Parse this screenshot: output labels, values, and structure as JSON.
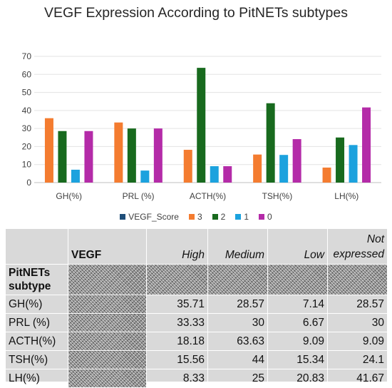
{
  "chart_data": {
    "type": "bar",
    "title": "VEGF Expression According to PitNETs subtypes",
    "categories": [
      "GH(%)",
      "PRL (%)",
      "ACTH(%)",
      "TSH(%)",
      "LH(%)"
    ],
    "ylim": [
      0,
      70
    ],
    "yticks": [
      0,
      10,
      20,
      30,
      40,
      50,
      60,
      70
    ],
    "grid": true,
    "legend_position": "bottom",
    "legend": [
      {
        "name": "VEGF_Score",
        "color": "#1f4e79"
      },
      {
        "name": "3",
        "color": "#f47c30"
      },
      {
        "name": "2",
        "color": "#186a1e"
      },
      {
        "name": "1",
        "color": "#1ca2de"
      },
      {
        "name": "0",
        "color": "#b42ba8"
      }
    ],
    "series": [
      {
        "name": "3",
        "color": "#f47c30",
        "values": [
          35.71,
          33.33,
          18.18,
          15.56,
          8.33
        ]
      },
      {
        "name": "2",
        "color": "#186a1e",
        "values": [
          28.57,
          30,
          63.63,
          44,
          25
        ]
      },
      {
        "name": "1",
        "color": "#1ca2de",
        "values": [
          7.14,
          6.67,
          9.09,
          15.34,
          20.83
        ]
      },
      {
        "name": "0",
        "color": "#b42ba8",
        "values": [
          28.57,
          30,
          9.09,
          24.1,
          41.67
        ]
      }
    ]
  },
  "table": {
    "header": [
      "",
      "VEGF",
      "High",
      "Medium",
      "Low",
      "Not expressed"
    ],
    "subtype_label": "PitNETs subtype",
    "rows": [
      {
        "label": "GH(%)",
        "values": [
          "35.71",
          "28.57",
          "7.14",
          "28.57"
        ]
      },
      {
        "label": "PRL (%)",
        "values": [
          "33.33",
          "30",
          "6.67",
          "30"
        ]
      },
      {
        "label": "ACTH(%)",
        "values": [
          "18.18",
          "63.63",
          "9.09",
          "9.09"
        ]
      },
      {
        "label": "TSH(%)",
        "values": [
          "15.56",
          "44",
          "15.34",
          "24.1"
        ]
      },
      {
        "label": "LH(%)",
        "values": [
          "8.33",
          "25",
          "20.83",
          "41.67"
        ]
      }
    ]
  }
}
